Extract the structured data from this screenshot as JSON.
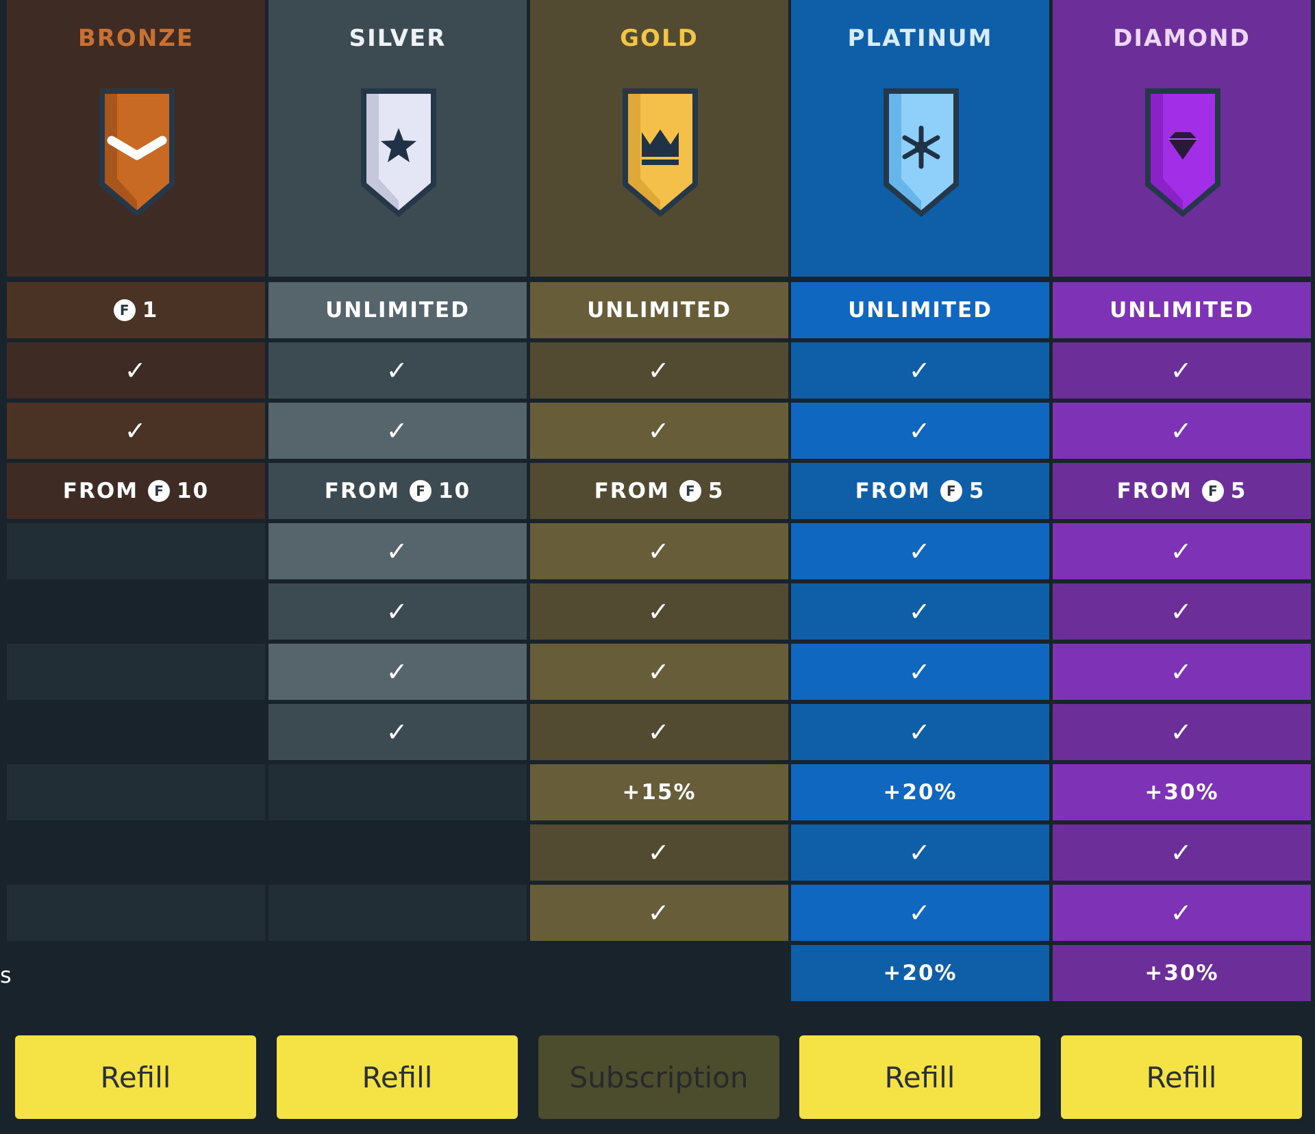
{
  "tiers": [
    {
      "name": "BRONZE",
      "color": "#c97133",
      "icon": "chevron-icon",
      "rows": {
        "limit": "1",
        "check1": "✓",
        "check2": "✓",
        "from_label": "FROM",
        "from_value": "10",
        "r6": "",
        "r7": "",
        "r8": "",
        "r9": "",
        "r10": "",
        "r11": "",
        "r12": "",
        "r13": ""
      },
      "button": "Refill"
    },
    {
      "name": "SILVER",
      "color": "#eef2f6",
      "icon": "star-icon",
      "rows": {
        "limit": "UNLIMITED",
        "check1": "✓",
        "check2": "✓",
        "from_label": "FROM",
        "from_value": "10",
        "r6": "✓",
        "r7": "✓",
        "r8": "✓",
        "r9": "✓",
        "r10": "",
        "r11": "",
        "r12": "",
        "r13": ""
      },
      "button": "Refill"
    },
    {
      "name": "GOLD",
      "color": "#f3c547",
      "icon": "crown-icon",
      "rows": {
        "limit": "UNLIMITED",
        "check1": "✓",
        "check2": "✓",
        "from_label": "FROM",
        "from_value": "5",
        "r6": "✓",
        "r7": "✓",
        "r8": "✓",
        "r9": "✓",
        "r10": "+15%",
        "r11": "✓",
        "r12": "✓",
        "r13": ""
      },
      "button": "Subscription"
    },
    {
      "name": "PLATINUM",
      "color": "#d8ecff",
      "icon": "snowflake-icon",
      "rows": {
        "limit": "UNLIMITED",
        "check1": "✓",
        "check2": "✓",
        "from_label": "FROM",
        "from_value": "5",
        "r6": "✓",
        "r7": "✓",
        "r8": "✓",
        "r9": "✓",
        "r10": "+20%",
        "r11": "✓",
        "r12": "✓",
        "r13": "+20%"
      },
      "button": "Refill"
    },
    {
      "name": "DIAMOND",
      "color": "#ecd8f6",
      "icon": "diamond-icon",
      "rows": {
        "limit": "UNLIMITED",
        "check1": "✓",
        "check2": "✓",
        "from_label": "FROM",
        "from_value": "5",
        "r6": "✓",
        "r7": "✓",
        "r8": "✓",
        "r9": "✓",
        "r10": "+30%",
        "r11": "✓",
        "r12": "✓",
        "r13": "+30%"
      },
      "button": "Refill"
    }
  ],
  "coin_symbol": "F",
  "edge_fragment": "s",
  "colors": {
    "page_bg": "#18232b",
    "button_yellow": "#f5e345",
    "button_disabled": "#4b4d2c",
    "bronze": {
      "header": "#3e2c24",
      "dark": "#3e2c24",
      "light": "#4a3224"
    },
    "silver": {
      "header": "#3c4a51",
      "dark": "#3c4a51",
      "light": "#56656c"
    },
    "gold": {
      "header": "#524b32",
      "dark": "#524b32",
      "light": "#685d39"
    },
    "platinum": {
      "header": "#0f5fa8",
      "dark": "#0f5fa8",
      "light": "#1067bf"
    },
    "diamond": {
      "header": "#6c2f9a",
      "dark": "#6c2f9a",
      "light": "#7e32b6"
    },
    "empty_light": "#212e36",
    "empty_dark": "#18232b"
  }
}
